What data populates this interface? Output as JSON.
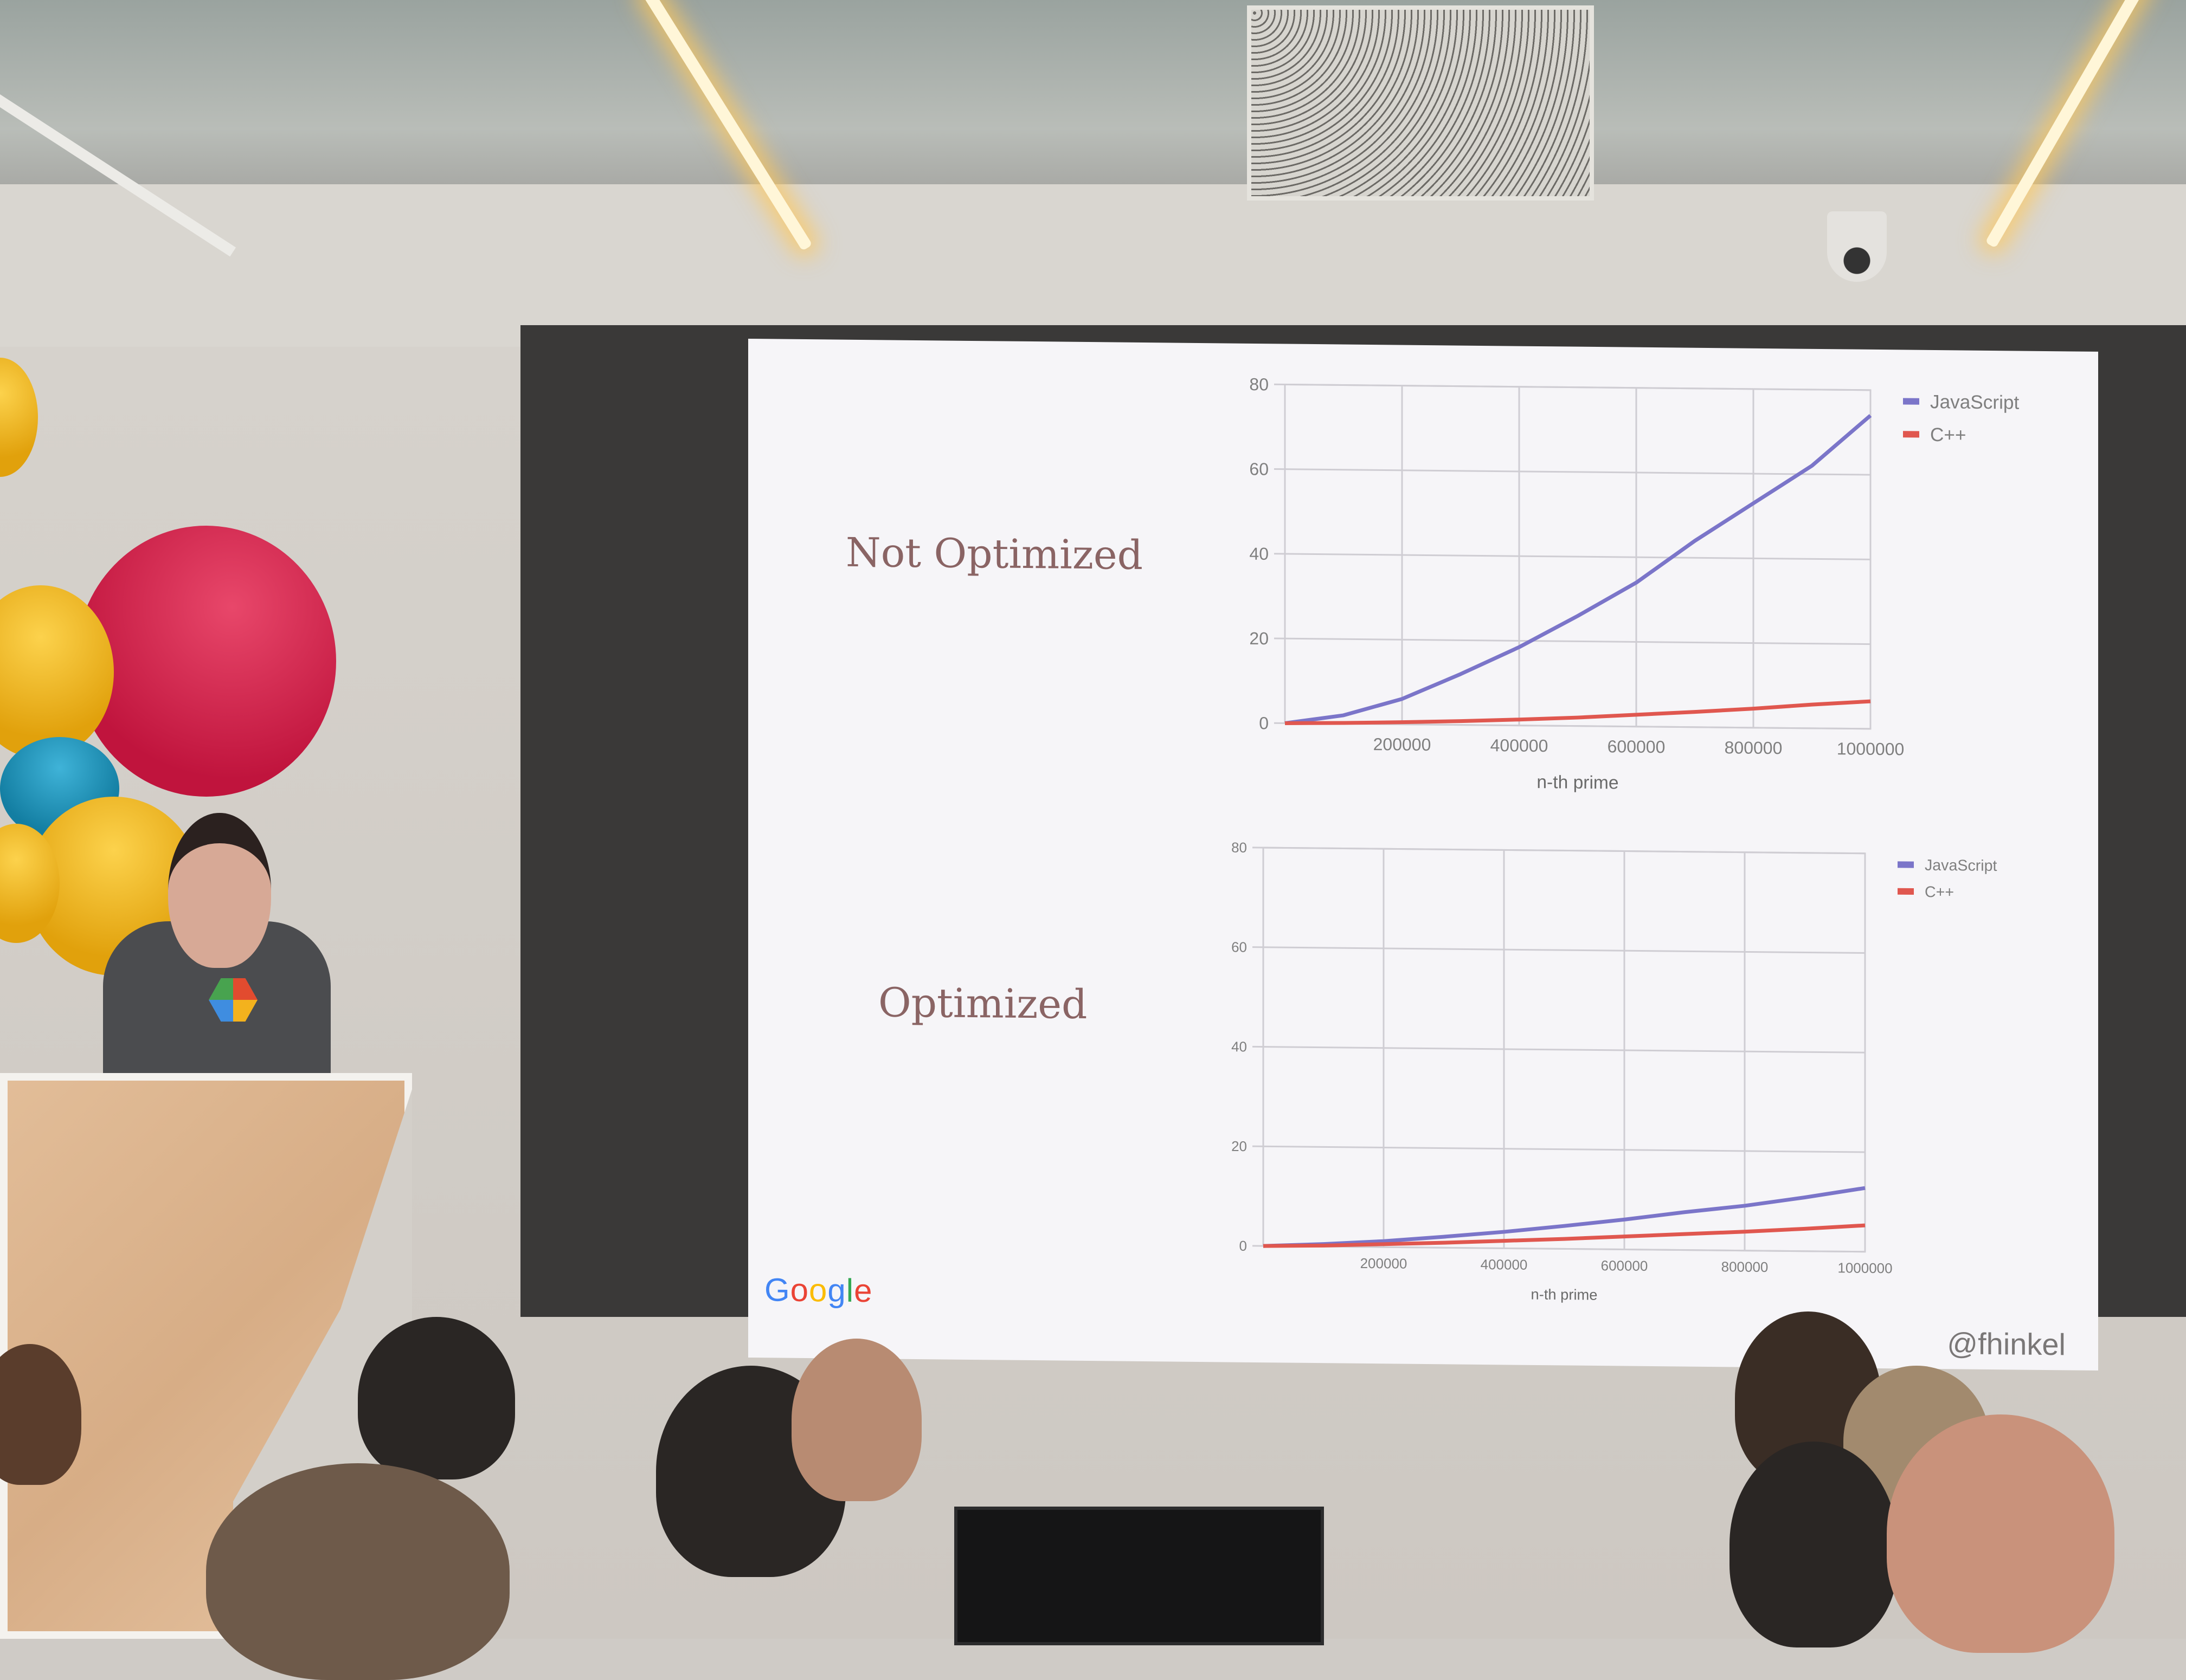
{
  "slide": {
    "top_heading": "Not Optimized",
    "bottom_heading": "Optimized",
    "logo_text": "Google",
    "handle": "@fhinkel"
  },
  "colors": {
    "javascript": "#7b75c9",
    "cpp": "#e0574f",
    "grid": "#cfcdd3",
    "tick_label": "#7f7f7f",
    "heading": "#8a6464",
    "google_blue": "#4285f4",
    "google_red": "#ea4335",
    "google_yellow": "#fbbc05",
    "google_green": "#34a853"
  },
  "chart_data": [
    {
      "type": "line",
      "title": "",
      "xlabel": "n-th prime",
      "ylabel": "",
      "xlim": [
        0,
        1000000
      ],
      "ylim": [
        0,
        80
      ],
      "x_ticks": [
        "200000",
        "400000",
        "600000",
        "800000",
        "1000000"
      ],
      "y_ticks": [
        "0",
        "20",
        "40",
        "60",
        "80"
      ],
      "grid": true,
      "legend_position": "top-right",
      "x": [
        0,
        100000,
        200000,
        300000,
        400000,
        500000,
        600000,
        700000,
        800000,
        900000,
        1000000
      ],
      "series": [
        {
          "name": "JavaScript",
          "values": [
            0,
            2,
            6,
            12,
            18.5,
            26,
            34,
            44,
            53,
            62,
            74
          ]
        },
        {
          "name": "C++",
          "values": [
            0,
            0.2,
            0.5,
            0.9,
            1.4,
            2,
            2.8,
            3.6,
            4.5,
            5.6,
            6.5
          ]
        }
      ]
    },
    {
      "type": "line",
      "title": "",
      "xlabel": "n-th prime",
      "ylabel": "",
      "xlim": [
        0,
        1000000
      ],
      "ylim": [
        0,
        80
      ],
      "x_ticks": [
        "200000",
        "400000",
        "600000",
        "800000",
        "1000000"
      ],
      "y_ticks": [
        "0",
        "20",
        "40",
        "60",
        "80"
      ],
      "grid": true,
      "legend_position": "top-right",
      "x": [
        0,
        100000,
        200000,
        300000,
        400000,
        500000,
        600000,
        700000,
        800000,
        900000,
        1000000
      ],
      "series": [
        {
          "name": "JavaScript",
          "values": [
            0,
            0.5,
            1.2,
            2.2,
            3.3,
            4.6,
            6,
            7.6,
            9,
            10.8,
            12.8
          ]
        },
        {
          "name": "C++",
          "values": [
            0,
            0.2,
            0.6,
            1,
            1.5,
            2,
            2.6,
            3.2,
            3.8,
            4.5,
            5.3
          ]
        }
      ]
    }
  ]
}
